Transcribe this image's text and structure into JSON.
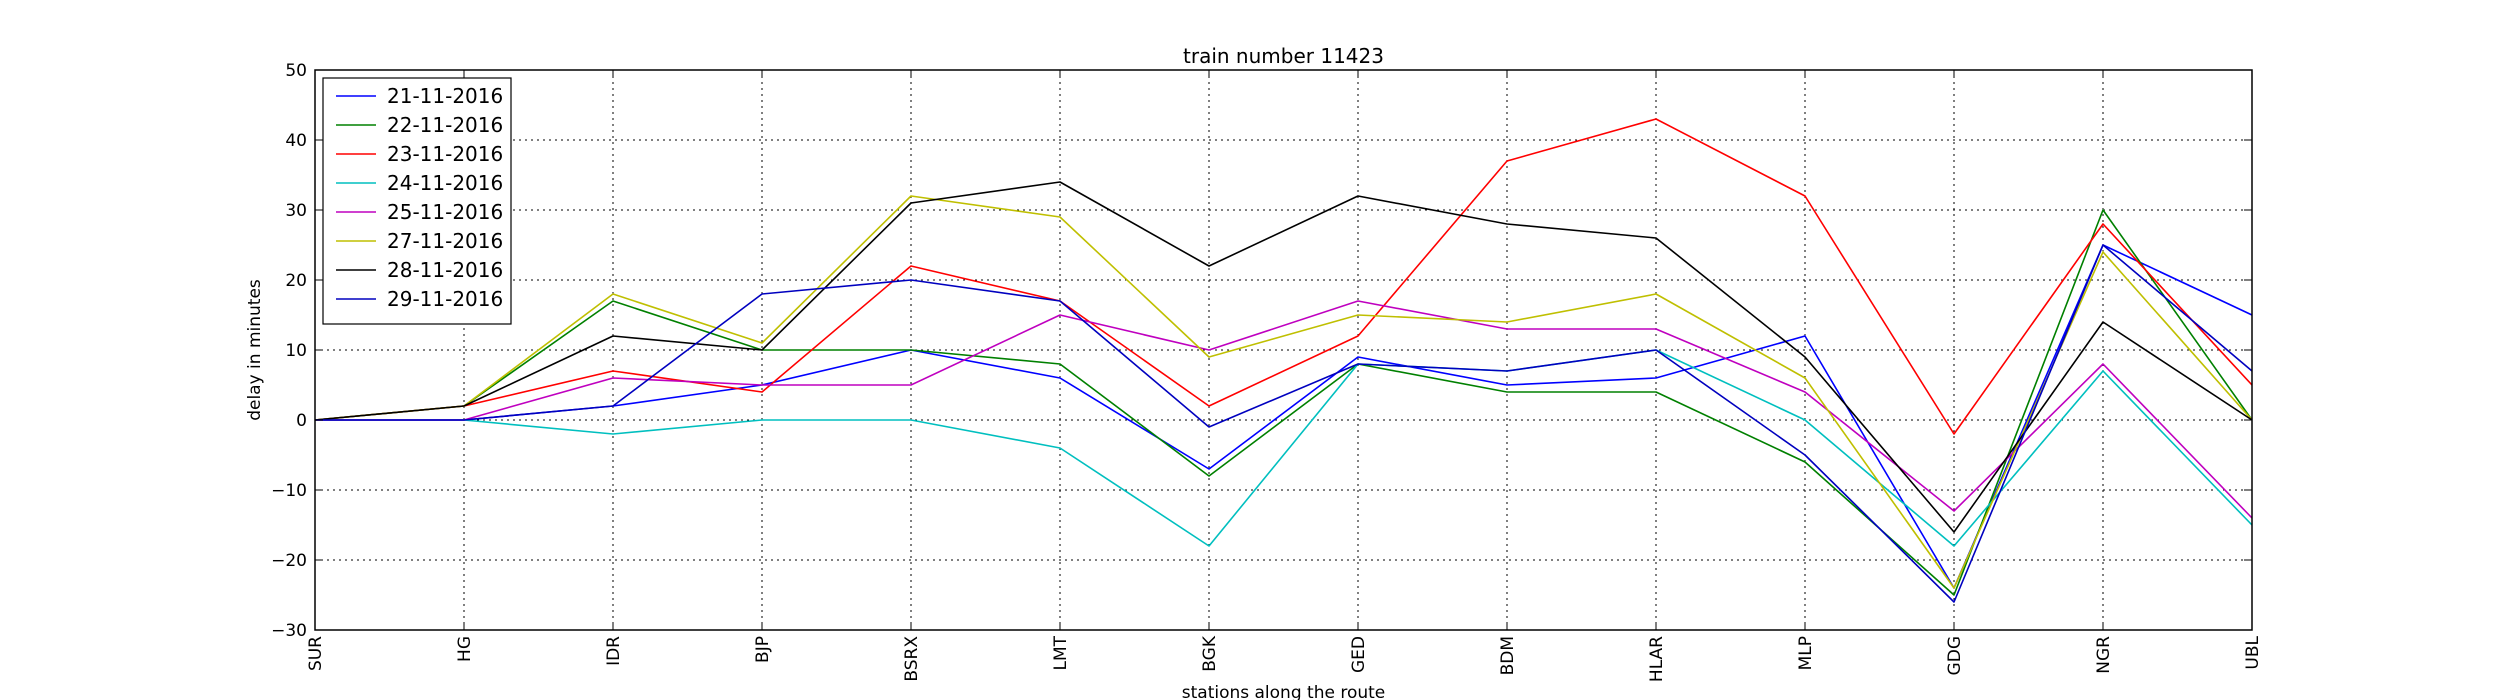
{
  "chart_data": {
    "type": "line",
    "title": "train number 11423",
    "xlabel": "stations along the route",
    "ylabel": "delay in minutes",
    "ylim": [
      -30,
      50
    ],
    "yticks": [
      -30,
      -20,
      -10,
      0,
      10,
      20,
      30,
      40,
      50
    ],
    "grid": true,
    "legend_position": "top-left",
    "categories": [
      "SUR",
      "HG",
      "IDR",
      "BJP",
      "BSRX",
      "LMT",
      "BGK",
      "GED",
      "BDM",
      "HLAR",
      "MLP",
      "GDG",
      "NGR",
      "UBL"
    ],
    "series": [
      {
        "name": "21-11-2016",
        "color": "#0000ff",
        "values": [
          0,
          0,
          2,
          5,
          10,
          6,
          -7,
          9,
          5,
          6,
          12,
          -24,
          25,
          15
        ]
      },
      {
        "name": "22-11-2016",
        "color": "#008000",
        "values": [
          0,
          2,
          17,
          10,
          10,
          8,
          -8,
          8,
          4,
          4,
          -6,
          -25,
          30,
          0
        ]
      },
      {
        "name": "23-11-2016",
        "color": "#ff0000",
        "values": [
          0,
          2,
          7,
          4,
          22,
          17,
          2,
          12,
          37,
          43,
          32,
          -2,
          28,
          5
        ]
      },
      {
        "name": "24-11-2016",
        "color": "#00bfbf",
        "values": [
          0,
          0,
          -2,
          0,
          0,
          -4,
          -18,
          8,
          7,
          10,
          0,
          -18,
          7,
          -15
        ]
      },
      {
        "name": "25-11-2016",
        "color": "#bf00bf",
        "values": [
          0,
          0,
          6,
          5,
          5,
          15,
          10,
          17,
          13,
          13,
          4,
          -13,
          8,
          -14
        ]
      },
      {
        "name": "27-11-2016",
        "color": "#bfbf00",
        "values": [
          0,
          2,
          18,
          11,
          32,
          29,
          9,
          15,
          14,
          18,
          6,
          -24,
          24,
          0
        ]
      },
      {
        "name": "28-11-2016",
        "color": "#000000",
        "values": [
          0,
          2,
          12,
          10,
          31,
          34,
          22,
          32,
          28,
          26,
          9,
          -16,
          14,
          0
        ]
      },
      {
        "name": "29-11-2016",
        "color": "#0000bf",
        "values": [
          0,
          0,
          2,
          18,
          20,
          17,
          -1,
          8,
          7,
          10,
          -5,
          -26,
          25,
          7
        ]
      }
    ]
  }
}
